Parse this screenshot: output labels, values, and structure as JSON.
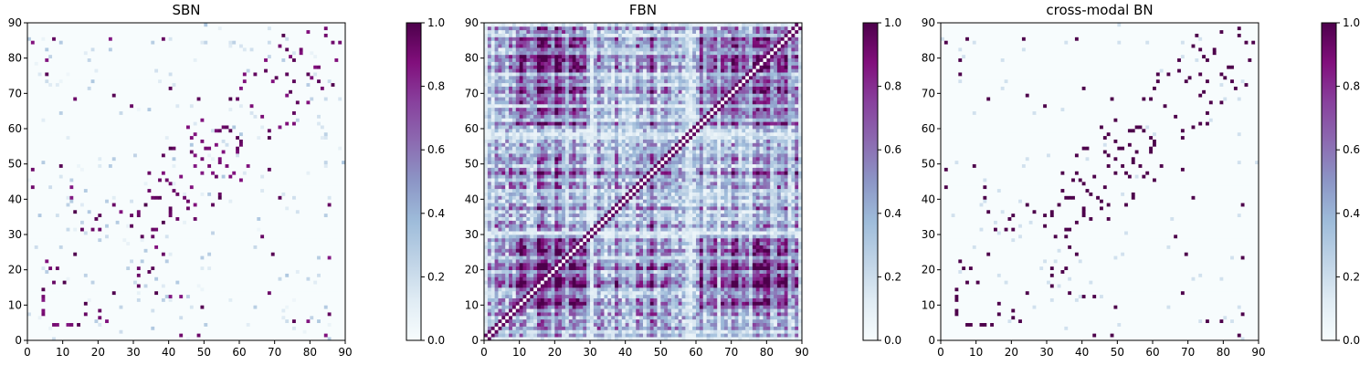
{
  "chart_data": [
    {
      "type": "heatmap",
      "title": "SBN",
      "n": 90,
      "xlim": [
        0,
        90
      ],
      "ylim": [
        0,
        90
      ],
      "x_ticks": [
        0,
        10,
        20,
        30,
        40,
        50,
        60,
        70,
        80,
        90
      ],
      "y_ticks": [
        0,
        10,
        20,
        30,
        40,
        50,
        60,
        70,
        80,
        90
      ],
      "pattern": "sparse",
      "description_of_values": "symmetric 90x90 matrix, mostly ~0 with scattered strong connections near the diagonal band",
      "seed": 11
    },
    {
      "type": "heatmap",
      "title": "FBN",
      "n": 90,
      "xlim": [
        0,
        90
      ],
      "ylim": [
        0,
        90
      ],
      "x_ticks": [
        0,
        10,
        20,
        30,
        40,
        50,
        60,
        70,
        80,
        90
      ],
      "y_ticks": [
        0,
        10,
        20,
        30,
        40,
        50,
        60,
        70,
        80,
        90
      ],
      "pattern": "dense",
      "seed": 23
    },
    {
      "type": "heatmap",
      "title": "cross-modal BN",
      "n": 90,
      "xlim": [
        0,
        90
      ],
      "ylim": [
        0,
        90
      ],
      "x_ticks": [
        0,
        10,
        20,
        30,
        40,
        50,
        60,
        70,
        80,
        90
      ],
      "y_ticks": [
        0,
        10,
        20,
        30,
        40,
        50,
        60,
        70,
        80,
        90
      ],
      "pattern": "binary-sparse",
      "seed": 11
    }
  ],
  "colorbar": {
    "range": [
      0.0,
      1.0
    ],
    "ticks": [
      "0.0",
      "0.2",
      "0.4",
      "0.6",
      "0.8",
      "1.0"
    ],
    "colormap": "BuPu",
    "stops": [
      "#f7fcfd",
      "#e0ecf4",
      "#bfd3e6",
      "#9ebcda",
      "#8c96c6",
      "#8c6bb1",
      "#88419d",
      "#810f7c",
      "#4d004b"
    ]
  }
}
